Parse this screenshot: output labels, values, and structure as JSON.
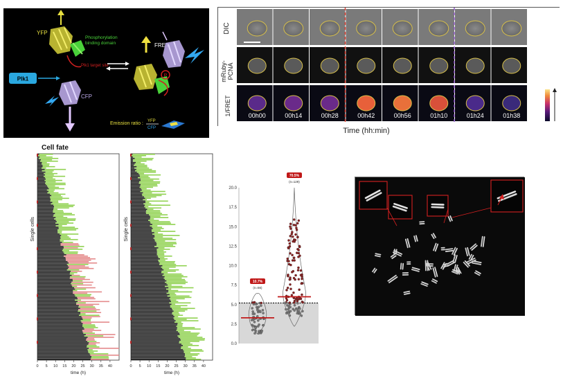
{
  "fret_diagram": {
    "yfp_label": "YFP",
    "cfp_label": "CFP",
    "domain_label_1": "Phosphorylation",
    "domain_label_2": "binding domain",
    "target_label": "Plk1 target site",
    "plk1_label": "Plk1",
    "fret_label": "FRET",
    "p_label": "P",
    "emission_label": "Emission ratio :",
    "emission_yfp": "YFP",
    "emission_cfp": "CFP"
  },
  "timelapse": {
    "row_labels": [
      "DIC",
      "mRuby-\nPCNA",
      "1/FRET"
    ],
    "row_label_dic": "DIC",
    "row_label_pcna_1": "mRuby-",
    "row_label_pcna_2": "PCNA",
    "row_label_fret": "1/FRET",
    "times": [
      "00h00",
      "00h14",
      "00h28",
      "00h42",
      "00h56",
      "01h10",
      "01h24",
      "01h38"
    ],
    "xlabel": "Time (hh:min)",
    "colors": {
      "outline": "#d8c04a",
      "dash_red": "#e03a2a",
      "dash_purple": "#8a4fc7"
    }
  },
  "cell_fate": {
    "title": "Cell fate",
    "panels": [
      {
        "ylabel": "Single cells",
        "xlabel": "time (h)",
        "ticks": [
          "0",
          "5",
          "10",
          "15",
          "20",
          "25",
          "30",
          "35",
          "40"
        ]
      },
      {
        "ylabel": "Single cells",
        "xlabel": "time (h)",
        "ticks": [
          "0",
          "5",
          "10",
          "15",
          "20",
          "25",
          "30",
          "35",
          "40"
        ]
      }
    ],
    "colors": {
      "black": "#1a1a1a",
      "green": "#8fd14f",
      "pink": "#e4898a",
      "red": "#b22222"
    }
  },
  "chart_data": {
    "type": "scatter",
    "title": "",
    "ylim": [
      0,
      20
    ],
    "yticks": [
      "0.0",
      "2.5",
      "5.0",
      "7.5",
      "10.0",
      "12.5",
      "15.0",
      "17.5",
      "20.0"
    ],
    "threshold": 5.2,
    "groups": [
      {
        "percent": "10.7%",
        "n": "(n=56)",
        "median": 3.3
      },
      {
        "percent": "70.5%",
        "n": "(n=129)",
        "median": 6.0
      }
    ]
  },
  "metaphase": {
    "colors": {
      "box": "#d62020"
    }
  }
}
